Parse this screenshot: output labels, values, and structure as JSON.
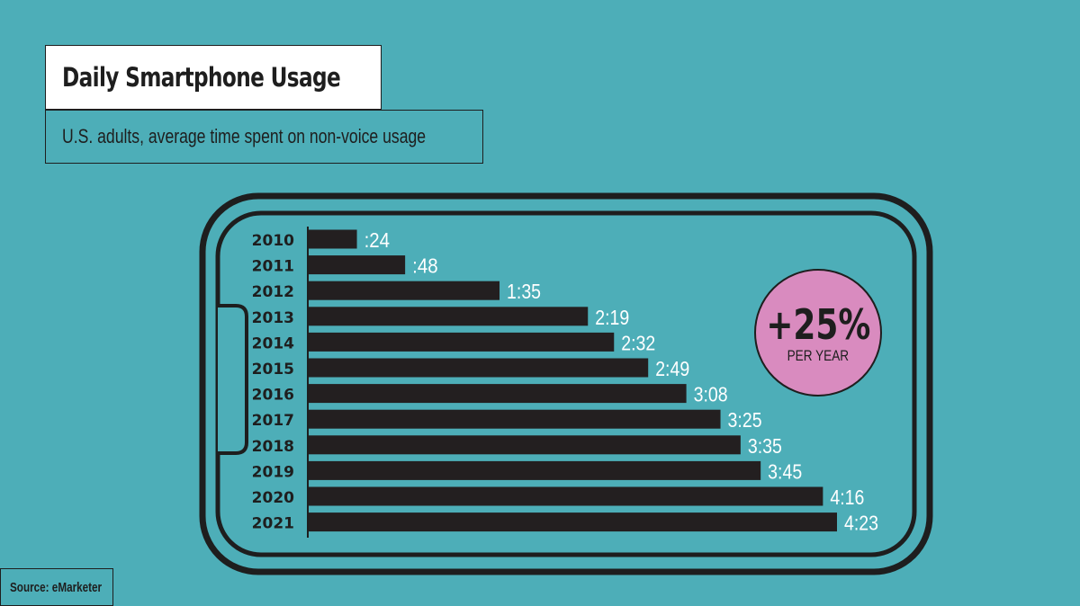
{
  "title": "Daily Smartphone Usage",
  "subtitle": "U.S. adults, average time spent on non-voice usage",
  "source": "Source: eMarketer",
  "badge": {
    "value": "+25%",
    "caption": "PER YEAR"
  },
  "colors": {
    "background": "#4daeb8",
    "bar": "#231f20",
    "badge": "#d98bbf",
    "label_text": "#ffffff"
  },
  "chart_data": {
    "type": "bar",
    "orientation": "horizontal",
    "title": "Daily Smartphone Usage",
    "subtitle": "U.S. adults, average time spent on non-voice usage",
    "categories": [
      "2010",
      "2011",
      "2012",
      "2013",
      "2014",
      "2015",
      "2016",
      "2017",
      "2018",
      "2019",
      "2020",
      "2021"
    ],
    "values_minutes": [
      24,
      48,
      95,
      139,
      152,
      169,
      188,
      205,
      215,
      225,
      256,
      263
    ],
    "data_labels": [
      ":24",
      ":48",
      "1:35",
      "2:19",
      "2:32",
      "2:49",
      "3:08",
      "3:25",
      "3:35",
      "3:45",
      "4:16",
      "4:23"
    ],
    "xlim": [
      0,
      263
    ],
    "grid": false,
    "legend": "none"
  }
}
